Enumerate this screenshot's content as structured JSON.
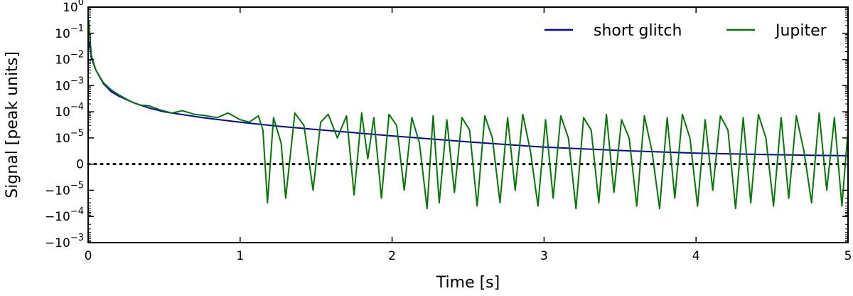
{
  "chart_data": {
    "type": "line",
    "title": "",
    "xlabel": "Time [s]",
    "ylabel": "Signal [peak units]",
    "xlim": [
      0,
      5
    ],
    "y_scale": "symlog",
    "y_linthresh": 1e-05,
    "ylim": [
      -0.001,
      1
    ],
    "x_ticks": [
      0,
      1,
      2,
      3,
      4,
      5
    ],
    "y_ticks": [
      {
        "value": 1,
        "mant": "10",
        "exp": "0"
      },
      {
        "value": 0.1,
        "mant": "10",
        "exp": "−1"
      },
      {
        "value": 0.01,
        "mant": "10",
        "exp": "−2"
      },
      {
        "value": 0.001,
        "mant": "10",
        "exp": "−3"
      },
      {
        "value": 0.0001,
        "mant": "10",
        "exp": "−4"
      },
      {
        "value": 1e-05,
        "mant": "10",
        "exp": "−5"
      },
      {
        "value": 0,
        "mant": "0",
        "exp": ""
      },
      {
        "value": -1e-05,
        "mant": "−10",
        "exp": "−5"
      },
      {
        "value": -0.0001,
        "mant": "−10",
        "exp": "−4"
      },
      {
        "value": -0.001,
        "mant": "−10",
        "exp": "−3"
      }
    ],
    "grid": false,
    "legend_position": "top-right",
    "reference_line": {
      "y": 0,
      "style": "dotted",
      "color": "#000000"
    },
    "series": [
      {
        "name": "short glitch",
        "color": "#0000cc",
        "x": [
          0.005,
          0.02,
          0.05,
          0.1,
          0.15,
          0.2,
          0.3,
          0.4,
          0.5,
          0.75,
          1.0,
          1.25,
          1.5,
          2.0,
          2.5,
          3.0,
          3.5,
          4.0,
          4.5,
          5.0
        ],
        "y": [
          0.05,
          0.012,
          0.004,
          0.0012,
          0.0006,
          0.0004,
          0.00022,
          0.00014,
          0.0001,
          6e-05,
          4e-05,
          2.8e-05,
          2.1e-05,
          1.2e-05,
          8.5e-06,
          6.5e-06,
          5.2e-06,
          4.2e-06,
          3.6e-06,
          3.2e-06
        ]
      },
      {
        "name": "Jupiter",
        "color": "#007a00",
        "x": [
          0.005,
          0.02,
          0.05,
          0.1,
          0.15,
          0.2,
          0.28,
          0.34,
          0.4,
          0.47,
          0.55,
          0.62,
          0.7,
          0.78,
          0.85,
          0.92,
          1.0,
          1.06,
          1.12,
          1.15,
          1.18,
          1.22,
          1.27,
          1.3,
          1.36,
          1.42,
          1.48,
          1.53,
          1.58,
          1.64,
          1.7,
          1.75,
          1.8,
          1.84,
          1.88,
          1.93,
          1.98,
          2.03,
          2.08,
          2.13,
          2.18,
          2.23,
          2.27,
          2.31,
          2.36,
          2.41,
          2.46,
          2.51,
          2.56,
          2.61,
          2.66,
          2.71,
          2.76,
          2.81,
          2.86,
          2.91,
          2.96,
          3.01,
          3.06,
          3.11,
          3.16,
          3.21,
          3.26,
          3.31,
          3.36,
          3.41,
          3.46,
          3.51,
          3.56,
          3.61,
          3.66,
          3.71,
          3.76,
          3.81,
          3.86,
          3.91,
          3.96,
          4.01,
          4.06,
          4.11,
          4.16,
          4.21,
          4.26,
          4.31,
          4.36,
          4.41,
          4.46,
          4.51,
          4.56,
          4.61,
          4.66,
          4.71,
          4.76,
          4.81,
          4.86,
          4.91,
          4.96,
          5.0
        ],
        "y": [
          0.3,
          0.015,
          0.004,
          0.0013,
          0.0007,
          0.00045,
          0.00025,
          0.00018,
          0.00017,
          0.00012,
          9e-05,
          0.00011,
          8e-05,
          7e-05,
          6e-05,
          9e-05,
          5e-05,
          4e-05,
          7e-05,
          2e-05,
          -3e-05,
          6e-05,
          8e-06,
          -2e-05,
          9e-05,
          3e-05,
          -1e-05,
          4e-05,
          8e-05,
          1e-05,
          7e-05,
          -1.5e-05,
          9e-05,
          2e-06,
          6e-05,
          -2e-05,
          8e-05,
          3e-05,
          -1e-05,
          6e-05,
          8e-06,
          -5e-05,
          7e-05,
          -3e-05,
          5e-05,
          -1.2e-05,
          6e-05,
          2e-05,
          -4e-05,
          7e-05,
          1e-05,
          -3e-05,
          6e-05,
          -1e-05,
          8e-05,
          5e-06,
          -4e-05,
          5e-05,
          -2e-05,
          7e-05,
          1e-05,
          -5e-05,
          6e-05,
          2e-05,
          -3e-05,
          8e-05,
          -1.2e-05,
          5e-05,
          1e-05,
          -4e-05,
          7e-05,
          5e-06,
          -5e-05,
          6e-05,
          -2e-05,
          8e-05,
          1e-05,
          -4e-05,
          5e-05,
          -1e-05,
          7e-05,
          2e-05,
          -5e-05,
          6e-05,
          -3e-05,
          8e-05,
          1e-05,
          -4e-05,
          6e-05,
          -2e-05,
          7e-05,
          5e-06,
          -3e-05,
          9e-05,
          -1e-05,
          6e-05,
          -4e-05,
          2e-05
        ]
      }
    ]
  }
}
